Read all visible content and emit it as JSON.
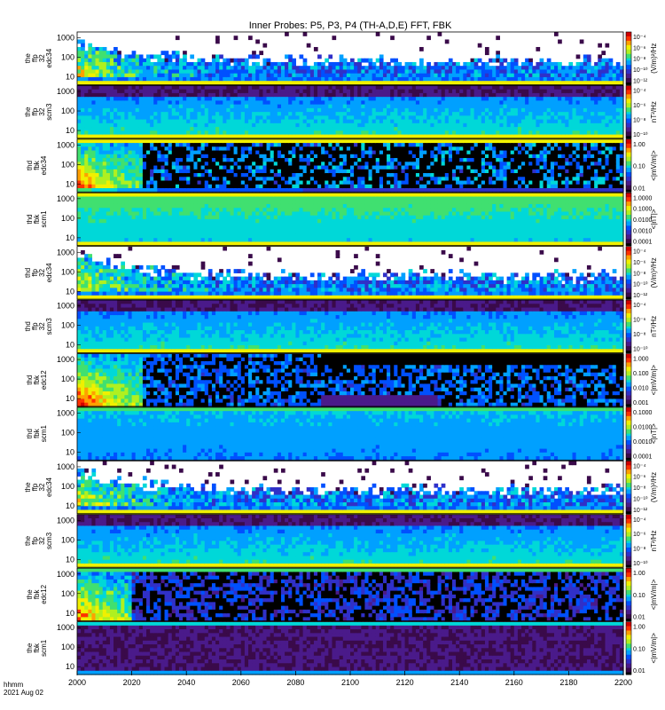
{
  "chart_data": {
    "type": "heatmap",
    "title": "Inner Probes: P5, P3, P4 (TH-A,D,E) FFT, FBK",
    "x_axis": {
      "unit_label": "hhmm",
      "date_label": "2021 Aug 02",
      "range": [
        2000,
        2200
      ],
      "ticks": [
        "2000",
        "2020",
        "2040",
        "2060",
        "2080",
        "2100",
        "2120",
        "2140",
        "2160",
        "2180",
        "2200"
      ]
    },
    "colormap": [
      "#000000",
      "#3a0a4a",
      "#4a1a8a",
      "#3030c8",
      "#0050ff",
      "#00a0ff",
      "#00d8d8",
      "#40e070",
      "#b0f020",
      "#f0f000",
      "#ffa000",
      "#ff3000",
      "#d00000"
    ],
    "panels": [
      {
        "id": "the-ffp32-edc34",
        "label": [
          "the",
          "ffp",
          "32",
          "edc34"
        ],
        "yticks": [
          "1000",
          "100",
          "10"
        ],
        "cbar_unit": "(V/m)²/Hz",
        "cbar_ticks": [
          "10⁻⁴",
          "10⁻⁶",
          "10⁻⁸",
          "10⁻¹⁰",
          "10⁻¹²"
        ],
        "pattern": "edc_ffp"
      },
      {
        "id": "the-ffp32-scm3",
        "label": [
          "the",
          "ffp",
          "32",
          "scm3"
        ],
        "yticks": [
          "1000",
          "100",
          "10"
        ],
        "cbar_unit": "nT²/Hz",
        "cbar_ticks": [
          "10⁻⁴",
          "10⁻⁶",
          "10⁻⁸",
          "10⁻¹⁰"
        ],
        "pattern": "scm_ffp"
      },
      {
        "id": "thd-fbk-edc34",
        "label": [
          "thd",
          "fbk",
          "edc34"
        ],
        "yticks": [
          "1000",
          "100",
          "10"
        ],
        "cbar_unit": "<|mV/m|>",
        "cbar_ticks": [
          "1.00",
          "0.10",
          "0.01"
        ],
        "pattern": "edc_fbk_a"
      },
      {
        "id": "thd-fbk-scm1",
        "label": [
          "thd",
          "fbk",
          "scm1"
        ],
        "yticks": [
          "1000",
          "100",
          "10"
        ],
        "cbar_unit": "<|nT|>",
        "cbar_ticks": [
          "1.0000",
          "0.1000",
          "0.0100",
          "0.0010",
          "0.0001"
        ],
        "pattern": "scm_fbk_a"
      },
      {
        "id": "thd-ffp32-edc34",
        "label": [
          "thd",
          "ffp",
          "32",
          "edc34"
        ],
        "yticks": [
          "1000",
          "100",
          "10"
        ],
        "cbar_unit": "(V/m)²/Hz",
        "cbar_ticks": [
          "10⁻⁴",
          "10⁻⁶",
          "10⁻⁸",
          "10⁻¹⁰",
          "10⁻¹²"
        ],
        "pattern": "edc_ffp"
      },
      {
        "id": "thd-ffp32-scm3",
        "label": [
          "thd",
          "ffp",
          "32",
          "scm3"
        ],
        "yticks": [
          "1000",
          "100",
          "10"
        ],
        "cbar_unit": "nT²/Hz",
        "cbar_ticks": [
          "10⁻⁴",
          "10⁻⁶",
          "10⁻⁸",
          "10⁻¹⁰"
        ],
        "pattern": "scm_ffp"
      },
      {
        "id": "thd-fbk-edc12",
        "label": [
          "thd",
          "fbk",
          "edc12"
        ],
        "yticks": [
          "1000",
          "100",
          "10"
        ],
        "cbar_unit": "<|mV/m|>",
        "cbar_ticks": [
          "1.000",
          "0.100",
          "0.010",
          "0.001"
        ],
        "pattern": "edc_fbk_b"
      },
      {
        "id": "thd-fbk-scm1-2",
        "label": [
          "thd",
          "fbk",
          "scm1"
        ],
        "yticks": [
          "1000",
          "100",
          "10"
        ],
        "cbar_unit": "<|nT|>",
        "cbar_ticks": [
          "0.1000",
          "0.0100",
          "0.0010",
          "0.0001"
        ],
        "pattern": "scm_fbk_b"
      },
      {
        "id": "the-ffp32-edc34-2",
        "label": [
          "the",
          "ffp",
          "32",
          "edc34"
        ],
        "yticks": [
          "1000",
          "100",
          "10"
        ],
        "cbar_unit": "(V/m)²/Hz",
        "cbar_ticks": [
          "10⁻⁴",
          "10⁻⁶",
          "10⁻⁸",
          "10⁻¹⁰",
          "10⁻¹²"
        ],
        "pattern": "edc_ffp"
      },
      {
        "id": "the-ffp32-scm3-2",
        "label": [
          "the",
          "ffp",
          "32",
          "scm3"
        ],
        "yticks": [
          "1000",
          "100",
          "10"
        ],
        "cbar_unit": "nT²/Hz",
        "cbar_ticks": [
          "10⁻⁴",
          "10⁻⁶",
          "10⁻⁸",
          "10⁻¹⁰"
        ],
        "pattern": "scm_ffp"
      },
      {
        "id": "the-fbk-edc12",
        "label": [
          "the",
          "fbk",
          "edc12"
        ],
        "yticks": [
          "1000",
          "100",
          "10"
        ],
        "cbar_unit": "<|mV/m|>",
        "cbar_ticks": [
          "1.00",
          "0.10",
          "0.01"
        ],
        "pattern": "edc_fbk_c"
      },
      {
        "id": "the-fbk-scm1",
        "label": [
          "the",
          "fbk",
          "scm1"
        ],
        "yticks": [
          "1000",
          "100",
          "10"
        ],
        "cbar_unit": "<|mV/m|>",
        "cbar_ticks": [
          "1.00",
          "0.10",
          "0.01"
        ],
        "pattern": "scm_fbk_c"
      }
    ]
  }
}
